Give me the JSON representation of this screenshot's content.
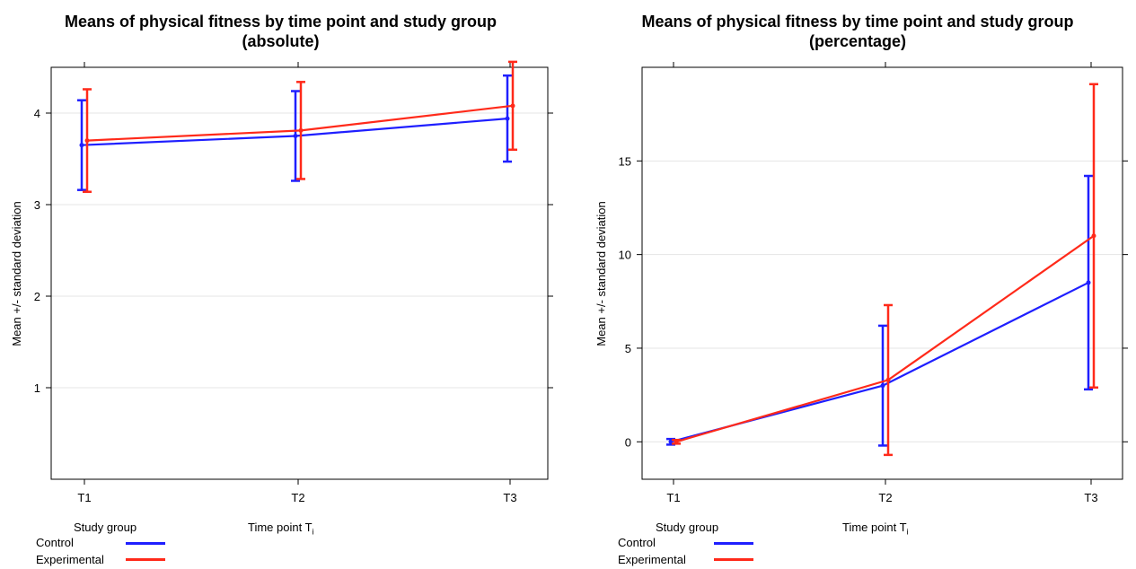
{
  "chart_data": [
    {
      "type": "line",
      "title": "Means of physical fitness by time point and study group",
      "subtitle": "(absolute)",
      "xlabel": "Time point T",
      "xlabel_subscript": "i",
      "ylabel": "Mean +/- standard deviation",
      "categories": [
        "T1",
        "T2",
        "T3"
      ],
      "ylim": [
        0,
        4.5
      ],
      "yticks": [
        1,
        2,
        3,
        4
      ],
      "grid": true,
      "legend_title": "Study group",
      "legend_position": "bottom-left",
      "series": [
        {
          "name": "Control",
          "color": "#1f1fff",
          "values": [
            3.65,
            3.75,
            3.94
          ],
          "sd": [
            0.49,
            0.49,
            0.47
          ]
        },
        {
          "name": "Experimental",
          "color": "#ff2a1a",
          "values": [
            3.7,
            3.81,
            4.08
          ],
          "sd": [
            0.56,
            0.53,
            0.48
          ]
        }
      ]
    },
    {
      "type": "line",
      "title": "Means of physical fitness by time point and study group",
      "subtitle": "(percentage)",
      "xlabel": "Time point T",
      "xlabel_subscript": "i",
      "ylabel": "Mean +/- standard deviation",
      "categories": [
        "T1",
        "T2",
        "T3"
      ],
      "ylim": [
        -2,
        20
      ],
      "yticks": [
        0,
        5,
        10,
        15
      ],
      "grid": true,
      "legend_title": "Study group",
      "legend_position": "bottom-left",
      "series": [
        {
          "name": "Control",
          "color": "#1f1fff",
          "values": [
            0.0,
            3.0,
            8.5
          ],
          "sd": [
            0.15,
            3.2,
            5.7
          ]
        },
        {
          "name": "Experimental",
          "color": "#ff2a1a",
          "values": [
            0.0,
            3.3,
            11.0
          ],
          "sd": [
            0.1,
            4.0,
            8.1
          ]
        }
      ]
    }
  ]
}
